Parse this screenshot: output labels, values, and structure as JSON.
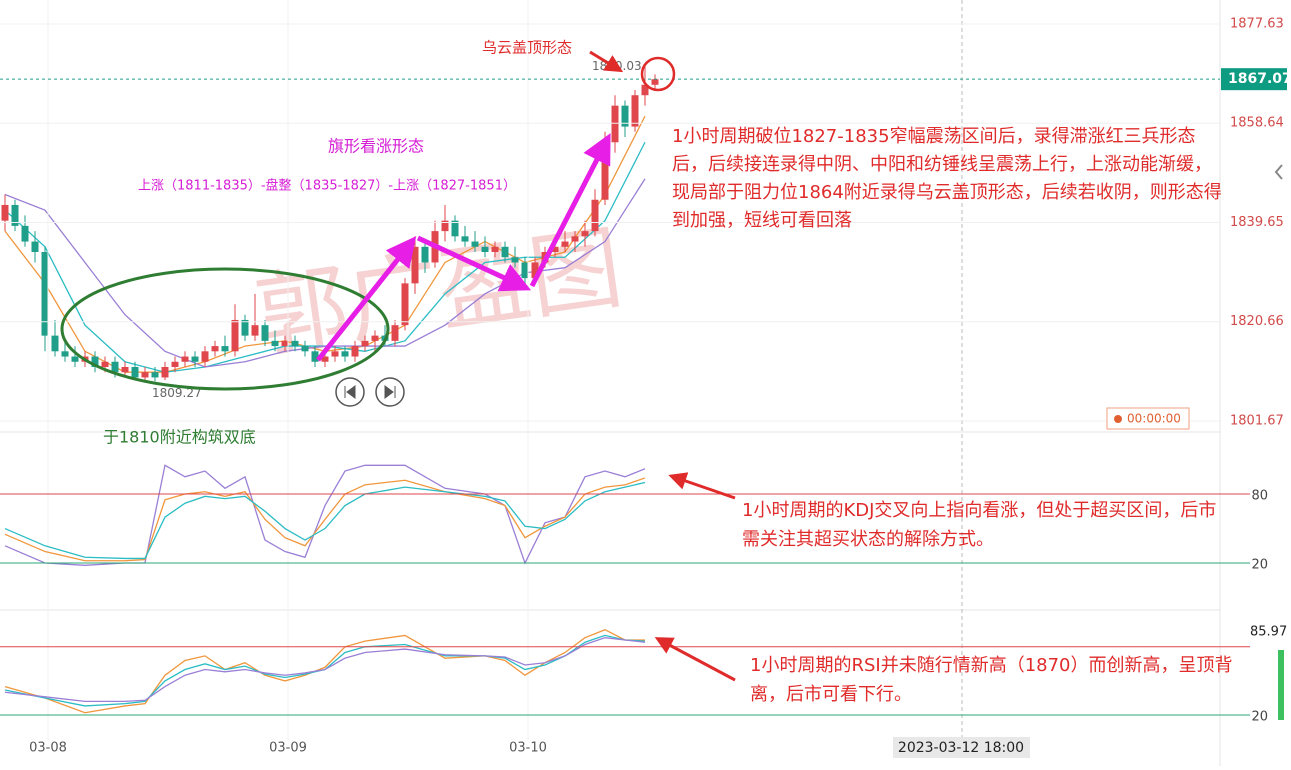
{
  "chart_data": [
    {
      "type": "candlestick",
      "ylim": [
        1799.56,
        1882.22
      ],
      "yticks": [
        1877.63,
        1858.64,
        1839.65,
        1820.66,
        1801.67
      ],
      "xticks": [
        {
          "value": 4.3,
          "label": "03-08"
        },
        {
          "value": 28.3,
          "label": "03-09"
        },
        {
          "value": 52.3,
          "label": "03-10"
        }
      ],
      "last_price": 1867.07,
      "high_label": 1870.03,
      "low_label": 1809.27,
      "up_color": "#e0474c",
      "down_color": "#1f9e89",
      "candles": [
        [
          1840,
          1845,
          1838,
          1843
        ],
        [
          1843,
          1844,
          1838,
          1839
        ],
        [
          1839,
          1841,
          1835,
          1836
        ],
        [
          1836,
          1838,
          1832,
          1834
        ],
        [
          1834,
          1835,
          1815,
          1818
        ],
        [
          1818,
          1821,
          1814,
          1815
        ],
        [
          1815,
          1817,
          1813,
          1814
        ],
        [
          1814,
          1816,
          1812,
          1813
        ],
        [
          1813,
          1815,
          1812,
          1814
        ],
        [
          1814,
          1815,
          1811,
          1812
        ],
        [
          1812,
          1814,
          1811,
          1813
        ],
        [
          1813,
          1814,
          1810,
          1811
        ],
        [
          1811,
          1813,
          1810,
          1812
        ],
        [
          1812,
          1813,
          1809.5,
          1810
        ],
        [
          1810,
          1812,
          1809.5,
          1811
        ],
        [
          1811,
          1812,
          1809.27,
          1810
        ],
        [
          1810,
          1813,
          1809.5,
          1812
        ],
        [
          1812,
          1814,
          1811,
          1813
        ],
        [
          1813,
          1815,
          1812,
          1814
        ],
        [
          1814,
          1815,
          1812,
          1813
        ],
        [
          1813,
          1816,
          1812,
          1815
        ],
        [
          1815,
          1817,
          1814,
          1816
        ],
        [
          1816,
          1818,
          1814,
          1815
        ],
        [
          1815,
          1824,
          1814,
          1821
        ],
        [
          1821,
          1822,
          1817,
          1818
        ],
        [
          1818,
          1826,
          1817,
          1820
        ],
        [
          1820,
          1821,
          1816,
          1817
        ],
        [
          1817,
          1819,
          1815,
          1816
        ],
        [
          1816,
          1818,
          1815,
          1817
        ],
        [
          1817,
          1818,
          1815,
          1816
        ],
        [
          1816,
          1817,
          1814,
          1815
        ],
        [
          1815,
          1816,
          1812,
          1813
        ],
        [
          1813,
          1815,
          1812,
          1814
        ],
        [
          1814,
          1816,
          1813,
          1815
        ],
        [
          1815,
          1816,
          1813,
          1814
        ],
        [
          1814,
          1817,
          1813,
          1816
        ],
        [
          1816,
          1818,
          1815,
          1817
        ],
        [
          1817,
          1819,
          1815,
          1818
        ],
        [
          1818,
          1820,
          1816,
          1817
        ],
        [
          1817,
          1821,
          1816,
          1820
        ],
        [
          1820,
          1829,
          1819,
          1828
        ],
        [
          1828,
          1837,
          1826,
          1835
        ],
        [
          1835,
          1836,
          1830,
          1832
        ],
        [
          1832,
          1840,
          1831,
          1838
        ],
        [
          1838,
          1843,
          1836,
          1840
        ],
        [
          1840,
          1841,
          1836,
          1837
        ],
        [
          1837,
          1839,
          1835,
          1836
        ],
        [
          1836,
          1838,
          1834,
          1835
        ],
        [
          1835,
          1837,
          1833,
          1834
        ],
        [
          1834,
          1836,
          1833,
          1835
        ],
        [
          1835,
          1836,
          1832,
          1833
        ],
        [
          1833,
          1835,
          1831,
          1832
        ],
        [
          1832,
          1833,
          1827,
          1829
        ],
        [
          1829,
          1833,
          1828,
          1832
        ],
        [
          1832,
          1835,
          1831,
          1834
        ],
        [
          1834,
          1836,
          1833,
          1835
        ],
        [
          1835,
          1838,
          1834,
          1836
        ],
        [
          1836,
          1838,
          1834,
          1837
        ],
        [
          1837,
          1840,
          1835,
          1838
        ],
        [
          1838,
          1846,
          1837,
          1844
        ],
        [
          1844,
          1857,
          1843,
          1855
        ],
        [
          1855,
          1864,
          1853,
          1862
        ],
        [
          1862,
          1863,
          1856,
          1858
        ],
        [
          1858,
          1865,
          1857,
          1864
        ],
        [
          1864,
          1870.03,
          1862,
          1866
        ],
        [
          1866,
          1868,
          1865,
          1867.07
        ]
      ],
      "series": [
        {
          "color": "#f0963c",
          "x": [
            0,
            4,
            8,
            12,
            16,
            20,
            24,
            28,
            32,
            36,
            40,
            44,
            48,
            52,
            56,
            60,
            64
          ],
          "values": [
            1838,
            1828,
            1815,
            1811,
            1811,
            1813,
            1816,
            1817,
            1815,
            1816,
            1820,
            1832,
            1836,
            1832,
            1834,
            1845,
            1860
          ]
        },
        {
          "color": "#2bbcc4",
          "x": [
            0,
            4,
            8,
            12,
            16,
            20,
            24,
            28,
            32,
            36,
            40,
            44,
            48,
            52,
            56,
            60,
            64
          ],
          "values": [
            1842,
            1835,
            1820,
            1813,
            1811,
            1812,
            1814,
            1816,
            1816,
            1815,
            1817,
            1826,
            1832,
            1833,
            1833,
            1840,
            1855
          ]
        },
        {
          "color": "#9a7fd6",
          "x": [
            0,
            4,
            8,
            12,
            16,
            20,
            24,
            28,
            32,
            36,
            40,
            44,
            48,
            52,
            56,
            60,
            64
          ],
          "values": [
            1845,
            1842,
            1832,
            1822,
            1815,
            1812,
            1813,
            1815,
            1816,
            1816,
            1816,
            1820,
            1826,
            1830,
            1831,
            1836,
            1848
          ]
        }
      ]
    },
    {
      "type": "line",
      "ylim": [
        -7.8,
        127
      ],
      "yticks": [
        80,
        20
      ],
      "level_colors": [
        "#e0474c",
        "#2aa876"
      ],
      "series": [
        {
          "color": "#9a7fd6",
          "x": [
            0,
            4,
            8,
            12,
            14,
            16,
            18,
            20,
            22,
            24,
            26,
            28,
            30,
            32,
            34,
            36,
            40,
            44,
            48,
            50,
            52,
            54,
            56,
            58,
            60,
            62,
            64
          ],
          "values": [
            35,
            20,
            18,
            20,
            20,
            105,
            95,
            100,
            85,
            95,
            40,
            30,
            25,
            70,
            100,
            105,
            105,
            85,
            80,
            70,
            20,
            55,
            60,
            95,
            100,
            95,
            102
          ]
        },
        {
          "color": "#f0963c",
          "x": [
            0,
            4,
            8,
            12,
            14,
            16,
            18,
            20,
            22,
            24,
            26,
            28,
            30,
            32,
            34,
            36,
            40,
            44,
            48,
            50,
            52,
            54,
            56,
            58,
            60,
            62,
            64
          ],
          "values": [
            45,
            30,
            22,
            22,
            23,
            75,
            80,
            82,
            78,
            82,
            58,
            42,
            35,
            58,
            80,
            88,
            92,
            82,
            76,
            70,
            42,
            52,
            60,
            80,
            86,
            88,
            94
          ]
        },
        {
          "color": "#2bbcc4",
          "x": [
            0,
            4,
            8,
            12,
            14,
            16,
            18,
            20,
            22,
            24,
            26,
            28,
            30,
            32,
            34,
            36,
            40,
            44,
            48,
            50,
            52,
            54,
            56,
            58,
            60,
            62,
            64
          ],
          "values": [
            50,
            35,
            25,
            24,
            24,
            60,
            72,
            78,
            76,
            78,
            65,
            50,
            40,
            50,
            70,
            80,
            86,
            82,
            78,
            74,
            52,
            50,
            58,
            74,
            82,
            86,
            90
          ]
        }
      ]
    },
    {
      "type": "line",
      "ylim": [
        -0.2,
        101.8
      ],
      "yticks": [
        20
      ],
      "overbought": 80,
      "last_value": 85.97,
      "level_colors": [
        "#2aa876",
        "#e0474c"
      ],
      "series": [
        {
          "color": "#f0963c",
          "x": [
            0,
            4,
            8,
            12,
            14,
            16,
            18,
            20,
            22,
            24,
            26,
            28,
            30,
            32,
            34,
            36,
            40,
            44,
            48,
            50,
            52,
            54,
            56,
            58,
            60,
            62,
            64
          ],
          "values": [
            45,
            35,
            22,
            28,
            30,
            55,
            68,
            72,
            60,
            66,
            55,
            50,
            55,
            62,
            80,
            85,
            90,
            70,
            72,
            68,
            55,
            66,
            75,
            88,
            95,
            86,
            85.97
          ]
        },
        {
          "color": "#2bbcc4",
          "x": [
            0,
            4,
            8,
            12,
            14,
            16,
            18,
            20,
            22,
            24,
            26,
            28,
            30,
            32,
            34,
            36,
            40,
            44,
            48,
            50,
            52,
            54,
            56,
            58,
            60,
            62,
            64
          ],
          "values": [
            42,
            35,
            28,
            30,
            32,
            50,
            60,
            65,
            60,
            63,
            56,
            53,
            56,
            60,
            75,
            80,
            82,
            72,
            72,
            70,
            60,
            64,
            72,
            84,
            90,
            86,
            85
          ]
        },
        {
          "color": "#9a7fd6",
          "x": [
            0,
            4,
            8,
            12,
            14,
            16,
            18,
            20,
            22,
            24,
            26,
            28,
            30,
            32,
            34,
            36,
            40,
            44,
            48,
            50,
            52,
            54,
            56,
            58,
            60,
            62,
            64
          ],
          "values": [
            40,
            36,
            32,
            32,
            33,
            45,
            55,
            60,
            58,
            60,
            57,
            55,
            57,
            60,
            70,
            75,
            78,
            73,
            72,
            71,
            64,
            66,
            72,
            82,
            88,
            86,
            84
          ]
        }
      ]
    }
  ],
  "annotations": {
    "dark_cloud": "乌云盖顶形态",
    "flag": "旗形看涨形态",
    "flag_detail": "上涨（1811-1835）-盘整（1835-1827）-上涨（1827-1851）",
    "double_bottom": "于1810附近构筑双底",
    "main_comment": [
      "1小时周期破位1827-1835窄幅震荡区间后，录得滞涨红三兵形态",
      "后，后续接连录得中阴、中阳和纺锤线呈震荡上行，上涨动能渐缓，",
      "现局部于阻力位1864附近录得乌云盖顶形态，后续若收阴，则形态得",
      "到加强，短线可看回落"
    ],
    "kdj_comment": [
      "1小时周期的KDJ交叉向上指向看涨，但处于超买区间，后市",
      "需关注其超买状态的解除方式。"
    ],
    "rsi_comment": [
      "1小时周期的RSI并未随行情新高（1870）而创新高，呈顶背",
      "离，后市可看下行。"
    ]
  },
  "watermark": "郭广盈图",
  "timer": "00:00:00",
  "crosshair_date": "2023-03-12 18:00"
}
